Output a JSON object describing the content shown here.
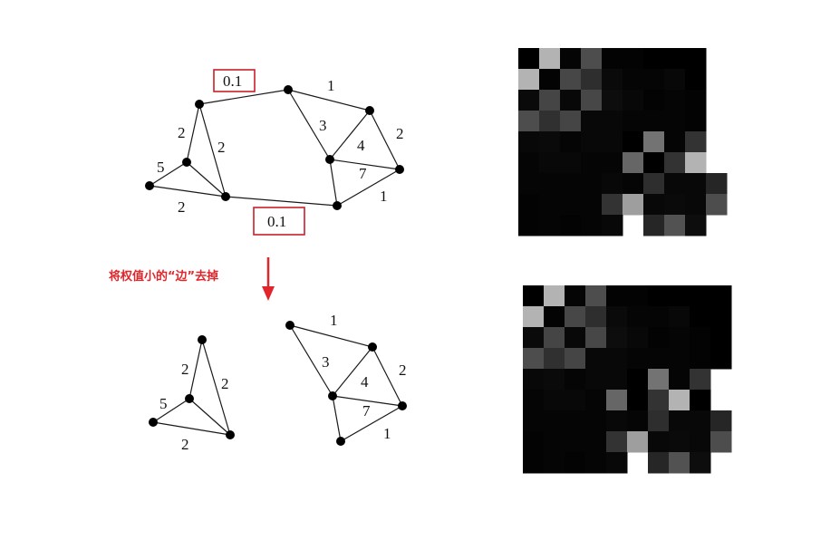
{
  "caption": "将权值小的“边”去掉",
  "colors": {
    "accent": "#e0262b",
    "edge": "#1a1a1a",
    "node": "#000000"
  },
  "graph_before": {
    "removed_weight_labels": [
      "0.1",
      "0.1"
    ],
    "weights": [
      "1",
      "2",
      "2",
      "5",
      "2",
      "3",
      "2",
      "4",
      "7",
      "1"
    ]
  },
  "graph_after": {
    "weights": [
      "2",
      "2",
      "5",
      "2",
      "1",
      "3",
      "2",
      "4",
      "7",
      "1"
    ]
  },
  "matrix_before": {
    "rows": [
      [
        0.0,
        0.7,
        0.02,
        0.3,
        0.01,
        0.01,
        0.0,
        0.0,
        0.0,
        null
      ],
      [
        0.7,
        0.01,
        0.28,
        0.18,
        0.04,
        0.02,
        0.02,
        0.03,
        0.0,
        null
      ],
      [
        0.04,
        0.27,
        0.03,
        0.28,
        0.05,
        0.03,
        0.01,
        0.02,
        0.01,
        null
      ],
      [
        0.3,
        0.19,
        0.27,
        0.03,
        0.03,
        0.02,
        0.02,
        0.02,
        0.01,
        null
      ],
      [
        0.03,
        0.04,
        0.02,
        0.03,
        0.03,
        0.0,
        0.45,
        0.02,
        0.2,
        null
      ],
      [
        0.02,
        0.03,
        0.03,
        0.02,
        0.02,
        0.4,
        0.0,
        0.2,
        0.7,
        null
      ],
      [
        0.02,
        0.02,
        0.02,
        0.02,
        0.03,
        0.02,
        0.18,
        0.03,
        0.03,
        0.15
      ],
      [
        0.01,
        0.02,
        0.02,
        0.02,
        0.2,
        0.62,
        0.03,
        0.04,
        0.03,
        0.3
      ],
      [
        0.01,
        0.02,
        0.01,
        0.02,
        0.03,
        null,
        0.15,
        0.32,
        0.05,
        null
      ]
    ]
  },
  "matrix_after": {
    "rows": [
      [
        0.0,
        0.7,
        0.02,
        0.3,
        0.01,
        0.01,
        0.0,
        0.0,
        0.0,
        0.0
      ],
      [
        0.7,
        0.01,
        0.28,
        0.18,
        0.04,
        0.02,
        0.02,
        0.03,
        0.0,
        0.0
      ],
      [
        0.04,
        0.27,
        0.03,
        0.28,
        0.05,
        0.03,
        0.01,
        0.02,
        0.01,
        0.0
      ],
      [
        0.3,
        0.19,
        0.27,
        0.03,
        0.03,
        0.02,
        0.02,
        0.02,
        0.01,
        0.0
      ],
      [
        0.03,
        0.04,
        0.02,
        0.03,
        0.03,
        0.0,
        0.45,
        0.02,
        0.2,
        null
      ],
      [
        0.02,
        0.03,
        0.03,
        0.02,
        0.4,
        0.0,
        0.2,
        0.7,
        0.0,
        null
      ],
      [
        0.02,
        0.02,
        0.02,
        0.02,
        0.03,
        0.02,
        0.18,
        0.03,
        0.03,
        0.15
      ],
      [
        0.01,
        0.02,
        0.02,
        0.02,
        0.2,
        0.62,
        0.03,
        0.04,
        0.03,
        0.3
      ],
      [
        0.01,
        0.02,
        0.01,
        0.02,
        0.03,
        null,
        0.15,
        0.32,
        0.05,
        null
      ]
    ]
  }
}
